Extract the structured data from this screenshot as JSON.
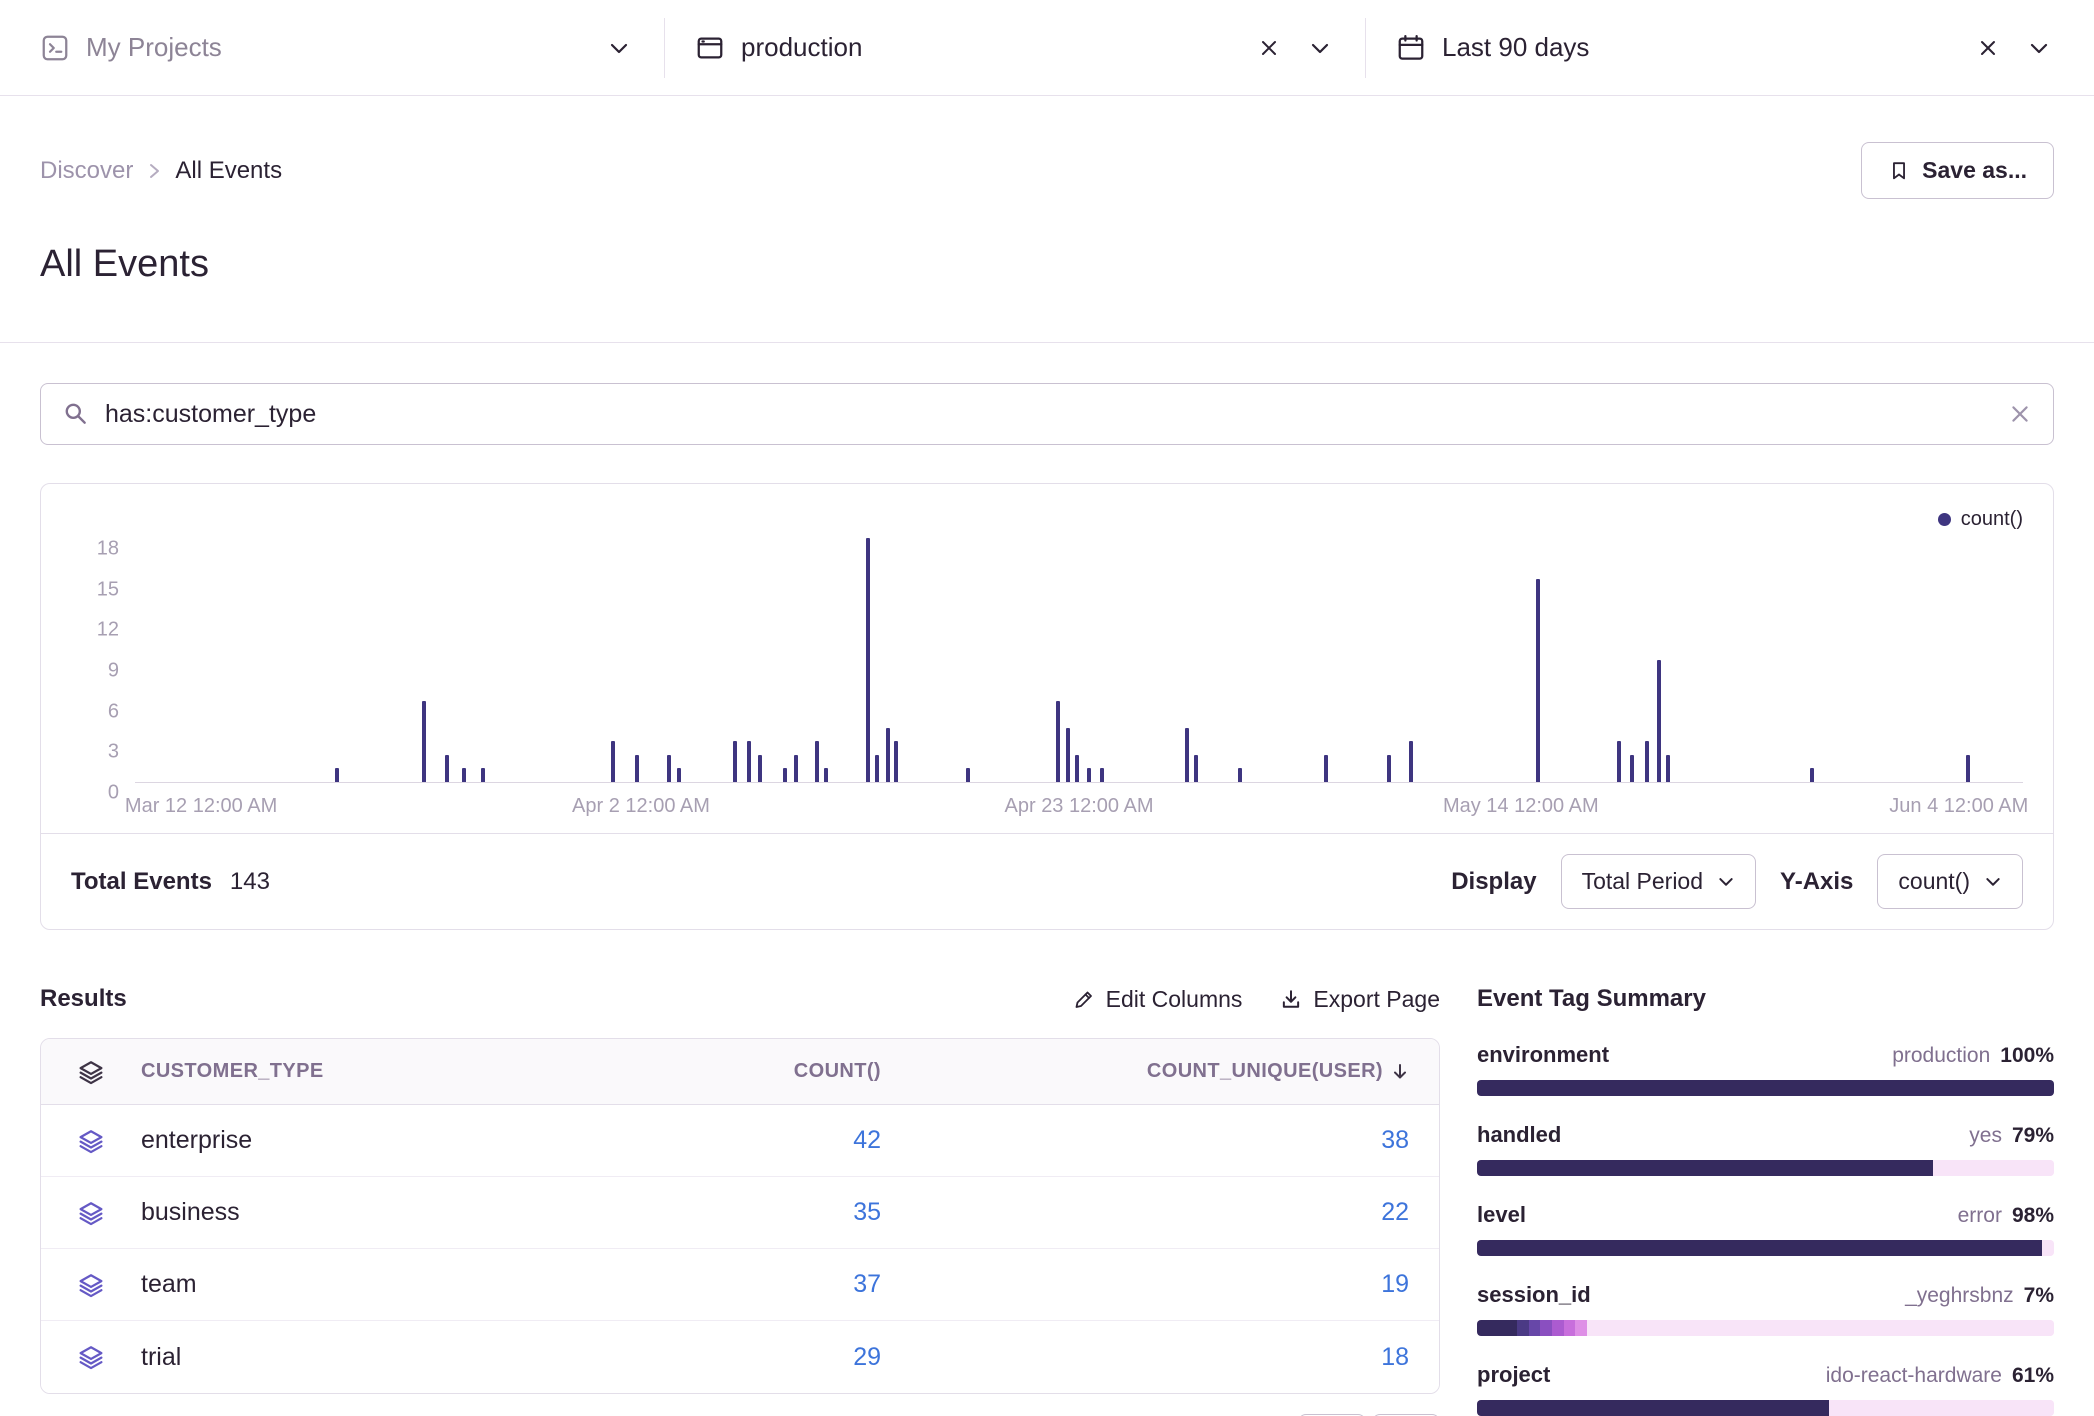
{
  "colors": {
    "chart_bar": "#3E3580",
    "tag_dark": "#352A5E",
    "tag_light": "#F8E4F8",
    "link": "#3D74DB"
  },
  "header": {
    "projects": {
      "label": "My Projects"
    },
    "environment": {
      "label": "production"
    },
    "date_range": {
      "label": "Last 90 days"
    }
  },
  "breadcrumb": {
    "parent": "Discover",
    "current": "All Events"
  },
  "save_as_label": "Save as...",
  "page_title": "All Events",
  "search": {
    "query": "has:customer_type"
  },
  "chart_data": {
    "type": "bar",
    "title": "",
    "legend": [
      "count()"
    ],
    "legend_position": "top-right",
    "ylim": [
      0,
      18
    ],
    "yticks": [
      0,
      3,
      6,
      9,
      12,
      15,
      18
    ],
    "grid": false,
    "xticks": [
      {
        "label": "Mar 12 12:00 AM",
        "pos": 0.035
      },
      {
        "label": "Apr 2 12:00 AM",
        "pos": 0.268
      },
      {
        "label": "Apr 23 12:00 AM",
        "pos": 0.5
      },
      {
        "label": "May 14 12:00 AM",
        "pos": 0.734
      },
      {
        "label": "Jun 4 12:00 AM",
        "pos": 0.966
      }
    ],
    "points": [
      {
        "pos": 0.106,
        "value": 1
      },
      {
        "pos": 0.152,
        "value": 6
      },
      {
        "pos": 0.164,
        "value": 2
      },
      {
        "pos": 0.173,
        "value": 1
      },
      {
        "pos": 0.183,
        "value": 1
      },
      {
        "pos": 0.252,
        "value": 3
      },
      {
        "pos": 0.265,
        "value": 2
      },
      {
        "pos": 0.282,
        "value": 2
      },
      {
        "pos": 0.287,
        "value": 1
      },
      {
        "pos": 0.317,
        "value": 3
      },
      {
        "pos": 0.324,
        "value": 3
      },
      {
        "pos": 0.33,
        "value": 2
      },
      {
        "pos": 0.343,
        "value": 1
      },
      {
        "pos": 0.349,
        "value": 2
      },
      {
        "pos": 0.36,
        "value": 3
      },
      {
        "pos": 0.365,
        "value": 1
      },
      {
        "pos": 0.387,
        "value": 18
      },
      {
        "pos": 0.392,
        "value": 2
      },
      {
        "pos": 0.398,
        "value": 4
      },
      {
        "pos": 0.402,
        "value": 3
      },
      {
        "pos": 0.44,
        "value": 1
      },
      {
        "pos": 0.488,
        "value": 6
      },
      {
        "pos": 0.493,
        "value": 4
      },
      {
        "pos": 0.498,
        "value": 2
      },
      {
        "pos": 0.504,
        "value": 1
      },
      {
        "pos": 0.511,
        "value": 1
      },
      {
        "pos": 0.556,
        "value": 4
      },
      {
        "pos": 0.561,
        "value": 2
      },
      {
        "pos": 0.584,
        "value": 1
      },
      {
        "pos": 0.63,
        "value": 2
      },
      {
        "pos": 0.663,
        "value": 2
      },
      {
        "pos": 0.675,
        "value": 3
      },
      {
        "pos": 0.742,
        "value": 15
      },
      {
        "pos": 0.785,
        "value": 3
      },
      {
        "pos": 0.792,
        "value": 2
      },
      {
        "pos": 0.8,
        "value": 3
      },
      {
        "pos": 0.806,
        "value": 9
      },
      {
        "pos": 0.811,
        "value": 2
      },
      {
        "pos": 0.887,
        "value": 1
      },
      {
        "pos": 0.97,
        "value": 2
      }
    ]
  },
  "chart_footer": {
    "total_label": "Total Events",
    "total_value": "143",
    "display_label": "Display",
    "display_value": "Total Period",
    "yaxis_label": "Y-Axis",
    "yaxis_value": "count()"
  },
  "results": {
    "heading": "Results",
    "edit_columns": "Edit Columns",
    "export_page": "Export Page",
    "table": {
      "columns": [
        "CUSTOMER_TYPE",
        "COUNT()",
        "COUNT_UNIQUE(USER)"
      ],
      "sorted_column": "COUNT_UNIQUE(USER)",
      "sort_direction": "desc",
      "rows": [
        {
          "name": "enterprise",
          "count": "42",
          "count_unique": "38"
        },
        {
          "name": "business",
          "count": "35",
          "count_unique": "22"
        },
        {
          "name": "team",
          "count": "37",
          "count_unique": "19"
        },
        {
          "name": "trial",
          "count": "29",
          "count_unique": "18"
        }
      ]
    }
  },
  "tag_summary": {
    "heading": "Event Tag Summary",
    "items": [
      {
        "label": "environment",
        "value": "production",
        "percent": "100%",
        "segments": [
          {
            "pct": 100,
            "color": "#352A5E"
          }
        ]
      },
      {
        "label": "handled",
        "value": "yes",
        "percent": "79%",
        "segments": [
          {
            "pct": 79,
            "color": "#352A5E"
          },
          {
            "pct": 21,
            "color": "#F8E4F8"
          }
        ]
      },
      {
        "label": "level",
        "value": "error",
        "percent": "98%",
        "segments": [
          {
            "pct": 98,
            "color": "#352A5E"
          },
          {
            "pct": 2,
            "color": "#F8E4F8"
          }
        ]
      },
      {
        "label": "session_id",
        "value": "_yeghrsbnz",
        "percent": "7%",
        "segments": [
          {
            "pct": 7,
            "color": "#352A5E"
          },
          {
            "pct": 2,
            "color": "#4B3A85"
          },
          {
            "pct": 2,
            "color": "#6747A8"
          },
          {
            "pct": 2,
            "color": "#8A4FC0"
          },
          {
            "pct": 2,
            "color": "#AC5BD0"
          },
          {
            "pct": 2,
            "color": "#C86FDC"
          },
          {
            "pct": 2,
            "color": "#DE8FE6"
          },
          {
            "pct": 81,
            "color": "#F8E4F8"
          }
        ]
      },
      {
        "label": "project",
        "value": "ido-react-hardware",
        "percent": "61%",
        "segments": [
          {
            "pct": 61,
            "color": "#352A5E"
          },
          {
            "pct": 39,
            "color": "#F8E4F8"
          }
        ]
      }
    ]
  }
}
